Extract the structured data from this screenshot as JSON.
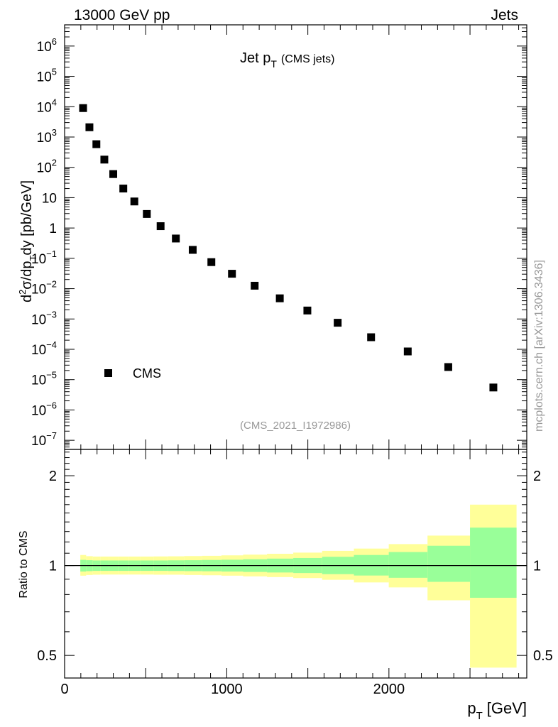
{
  "header": {
    "left": "13000 GeV pp",
    "right": "Jets"
  },
  "side_label": "mcplots.cern.ch [arXiv:1306.3436]",
  "colors": {
    "outer_band": "#ffff99",
    "inner_band": "#99ff99",
    "marker": "#000000",
    "watermark": "#999999"
  },
  "chart_data": [
    {
      "type": "scatter",
      "title_main": "Jet p",
      "title_sub": "T",
      "title_tail": "(CMS jets)",
      "xlabel": "p",
      "xlabel_sub": "T",
      "xlabel_unit": "[GeV]",
      "ylabel": "d²σ/dp_T dy [pb/GeV]",
      "yscale": "log",
      "ylim": [
        5e-08,
        5000000.0
      ],
      "xlim": [
        0,
        2850
      ],
      "y_ticks": [
        {
          "v": 1000000.0,
          "m": "10",
          "e": "6"
        },
        {
          "v": 100000.0,
          "m": "10",
          "e": "5"
        },
        {
          "v": 10000.0,
          "m": "10",
          "e": "4"
        },
        {
          "v": 1000.0,
          "m": "10",
          "e": "3"
        },
        {
          "v": 100.0,
          "m": "10",
          "e": "2"
        },
        {
          "v": 10,
          "m": "10",
          "e": ""
        },
        {
          "v": 1,
          "m": "1",
          "e": ""
        },
        {
          "v": 0.1,
          "m": "10",
          "e": "−1"
        },
        {
          "v": 0.01,
          "m": "10",
          "e": "−2"
        },
        {
          "v": 0.001,
          "m": "10",
          "e": "−3"
        },
        {
          "v": 0.0001,
          "m": "10",
          "e": "−4"
        },
        {
          "v": 1e-05,
          "m": "10",
          "e": "−5"
        },
        {
          "v": 1e-06,
          "m": "10",
          "e": "−6"
        },
        {
          "v": 1e-07,
          "m": "10",
          "e": "−7"
        }
      ],
      "legend": {
        "label": "CMS",
        "placement": "bottom-left"
      },
      "watermark": "(CMS_2021_I1972986)",
      "series": [
        {
          "name": "CMS",
          "x": [
            114,
            153,
            196,
            245,
            300,
            362,
            430,
            507,
            592,
            686,
            790,
            905,
            1032,
            1172,
            1327,
            1497,
            1684,
            1890,
            2116,
            2366,
            2644
          ],
          "y": [
            9000,
            2100,
            580,
            180,
            60,
            20,
            7.5,
            2.9,
            1.15,
            0.45,
            0.19,
            0.075,
            0.031,
            0.0125,
            0.0048,
            0.0019,
            0.00075,
            0.00025,
            8.5e-05,
            2.6e-05,
            5.5e-06
          ]
        }
      ]
    },
    {
      "type": "area",
      "ylabel": "Ratio to CMS",
      "ylim": [
        0.42,
        2.45
      ],
      "xlim": [
        0,
        2850
      ],
      "y_ticks": [
        {
          "v": 0.5,
          "label": "0.5"
        },
        {
          "v": 1,
          "label": "1"
        },
        {
          "v": 2,
          "label": "2"
        }
      ],
      "x_ticks": [
        {
          "v": 0,
          "label": "0"
        },
        {
          "v": 1000,
          "label": "1000"
        },
        {
          "v": 2000,
          "label": "2000"
        }
      ],
      "bins": [
        {
          "x0": 97,
          "x1": 133,
          "outer": [
            0.925,
            1.085
          ],
          "inner": [
            0.955,
            1.045
          ]
        },
        {
          "x0": 133,
          "x1": 174,
          "outer": [
            0.93,
            1.075
          ],
          "inner": [
            0.958,
            1.042
          ]
        },
        {
          "x0": 174,
          "x1": 220,
          "outer": [
            0.932,
            1.072
          ],
          "inner": [
            0.96,
            1.04
          ]
        },
        {
          "x0": 220,
          "x1": 272,
          "outer": [
            0.933,
            1.072
          ],
          "inner": [
            0.96,
            1.04
          ]
        },
        {
          "x0": 272,
          "x1": 330,
          "outer": [
            0.933,
            1.072
          ],
          "inner": [
            0.96,
            1.04
          ]
        },
        {
          "x0": 330,
          "x1": 395,
          "outer": [
            0.933,
            1.072
          ],
          "inner": [
            0.96,
            1.04
          ]
        },
        {
          "x0": 395,
          "x1": 468,
          "outer": [
            0.933,
            1.072
          ],
          "inner": [
            0.96,
            1.04
          ]
        },
        {
          "x0": 468,
          "x1": 548,
          "outer": [
            0.933,
            1.072
          ],
          "inner": [
            0.96,
            1.04
          ]
        },
        {
          "x0": 548,
          "x1": 638,
          "outer": [
            0.932,
            1.073
          ],
          "inner": [
            0.96,
            1.04
          ]
        },
        {
          "x0": 638,
          "x1": 737,
          "outer": [
            0.932,
            1.074
          ],
          "inner": [
            0.959,
            1.041
          ]
        },
        {
          "x0": 737,
          "x1": 846,
          "outer": [
            0.93,
            1.076
          ],
          "inner": [
            0.958,
            1.042
          ]
        },
        {
          "x0": 846,
          "x1": 967,
          "outer": [
            0.928,
            1.078
          ],
          "inner": [
            0.957,
            1.044
          ]
        },
        {
          "x0": 967,
          "x1": 1101,
          "outer": [
            0.925,
            1.082
          ],
          "inner": [
            0.955,
            1.046
          ]
        },
        {
          "x0": 1101,
          "x1": 1248,
          "outer": [
            0.92,
            1.088
          ],
          "inner": [
            0.952,
            1.05
          ]
        },
        {
          "x0": 1248,
          "x1": 1410,
          "outer": [
            0.915,
            1.095
          ],
          "inner": [
            0.948,
            1.055
          ]
        },
        {
          "x0": 1410,
          "x1": 1588,
          "outer": [
            0.908,
            1.105
          ],
          "inner": [
            0.944,
            1.06
          ]
        },
        {
          "x0": 1588,
          "x1": 1784,
          "outer": [
            0.896,
            1.12
          ],
          "inner": [
            0.936,
            1.07
          ]
        },
        {
          "x0": 1784,
          "x1": 1999,
          "outer": [
            0.878,
            1.14
          ],
          "inner": [
            0.926,
            1.085
          ]
        },
        {
          "x0": 1999,
          "x1": 2238,
          "outer": [
            0.845,
            1.18
          ],
          "inner": [
            0.91,
            1.11
          ]
        },
        {
          "x0": 2238,
          "x1": 2500,
          "outer": [
            0.765,
            1.26
          ],
          "inner": [
            0.882,
            1.165
          ]
        },
        {
          "x0": 2500,
          "x1": 2787,
          "outer": [
            0.455,
            1.6
          ],
          "inner": [
            0.78,
            1.34
          ]
        }
      ],
      "reference": 1
    }
  ]
}
